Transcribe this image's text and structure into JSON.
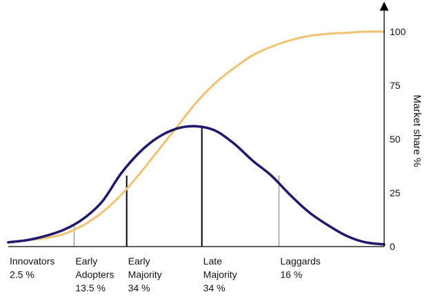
{
  "colors": {
    "bell_curve": "#1f1a6e",
    "s_curve": "#efc479",
    "axis": "#000000",
    "divider_dark": "#000000",
    "divider_light": "#777777"
  },
  "chart_data": {
    "type": "line",
    "title": "",
    "xlabel": "",
    "ylabel": "Market share %",
    "ylim": [
      0,
      100
    ],
    "yticks": [
      0,
      25,
      50,
      75,
      100
    ],
    "y_axis_position": "right",
    "grid": false,
    "legend": "none",
    "series": [
      {
        "role": "adoption-bell-curve",
        "color": "#1f1a6e",
        "x": [
          0,
          5,
          10,
          15,
          20,
          25,
          30,
          35,
          40,
          45,
          50,
          55,
          60,
          65,
          70,
          75,
          80,
          85,
          90,
          95,
          100
        ],
        "y": [
          2,
          3,
          5,
          8,
          13,
          21,
          34,
          44,
          51,
          55,
          56,
          54,
          48,
          40,
          33,
          24,
          16,
          10,
          5,
          2,
          1
        ]
      },
      {
        "role": "cumulative-market-share",
        "color": "#efc479",
        "x": [
          0,
          5,
          10,
          15,
          20,
          25,
          30,
          35,
          40,
          45,
          50,
          55,
          60,
          65,
          70,
          75,
          80,
          85,
          90,
          95,
          100
        ],
        "y": [
          2,
          3,
          4,
          6,
          10,
          16,
          24,
          34,
          45,
          56,
          67,
          76,
          83,
          89,
          93,
          96,
          98,
          99,
          99.5,
          100,
          100
        ]
      }
    ],
    "dividers": [
      {
        "x": 17.5,
        "top": 10,
        "style": "light"
      },
      {
        "x": 31.5,
        "top": 33,
        "style": "dark"
      },
      {
        "x": 51.5,
        "top": 56,
        "style": "dark"
      },
      {
        "x": 72,
        "top": 33,
        "style": "light"
      }
    ],
    "segments": [
      {
        "name": "Innovators",
        "lines": [
          "Innovators",
          "2.5 %"
        ],
        "x": 0
      },
      {
        "name": "Early Adopters",
        "lines": [
          "Early",
          "Adopters",
          "13.5 %"
        ],
        "x": 17.5
      },
      {
        "name": "Early Majority",
        "lines": [
          "Early",
          "Majority",
          "34 %"
        ],
        "x": 31.5
      },
      {
        "name": "Late Majority",
        "lines": [
          "Late",
          "Majority",
          "34 %"
        ],
        "x": 51.5
      },
      {
        "name": "Laggards",
        "lines": [
          "Laggards",
          "16 %"
        ],
        "x": 72
      }
    ]
  }
}
